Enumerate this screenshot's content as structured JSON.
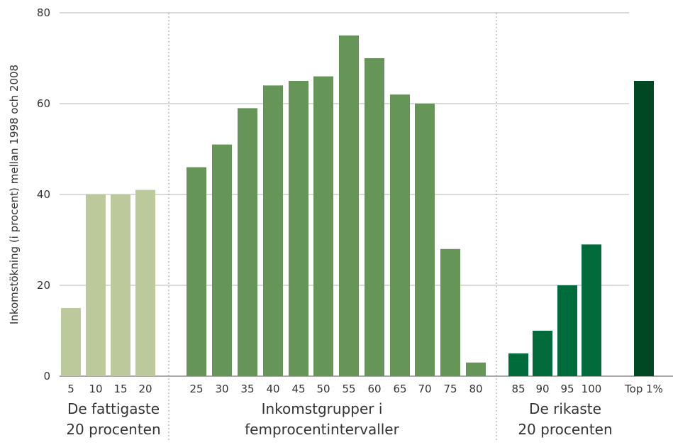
{
  "chart_data": {
    "type": "bar",
    "ylabel": "Inkomstökning (i procent) mellan 1998 och 2008",
    "ylim": [
      0,
      80
    ],
    "yticks": [
      "0",
      "20",
      "40",
      "60",
      "80"
    ],
    "grid": true,
    "categories": [
      "5",
      "10",
      "15",
      "20",
      "25",
      "30",
      "35",
      "40",
      "45",
      "50",
      "55",
      "60",
      "65",
      "70",
      "75",
      "80",
      "85",
      "90",
      "95",
      "100",
      "Top 1%"
    ],
    "values": [
      15,
      40,
      40,
      41,
      46,
      51,
      59,
      64,
      65,
      66,
      75,
      70,
      62,
      60,
      28,
      3,
      5,
      10,
      20,
      29,
      65
    ],
    "groups": [
      {
        "label_lines": [
          "De fattigaste",
          "20 procenten"
        ],
        "color": "#bcc99a"
      },
      {
        "label_lines": [
          "Inkomstgrupper i",
          "femprocentintervaller"
        ],
        "color": "#659557"
      },
      {
        "label_lines": [
          "De rikaste",
          "20 procenten"
        ],
        "color": "#006b3b"
      },
      {
        "label_lines": [],
        "color": "#004723"
      }
    ],
    "bar_group": [
      0,
      0,
      0,
      0,
      1,
      1,
      1,
      1,
      1,
      1,
      1,
      1,
      1,
      1,
      1,
      1,
      2,
      2,
      2,
      2,
      3
    ]
  }
}
